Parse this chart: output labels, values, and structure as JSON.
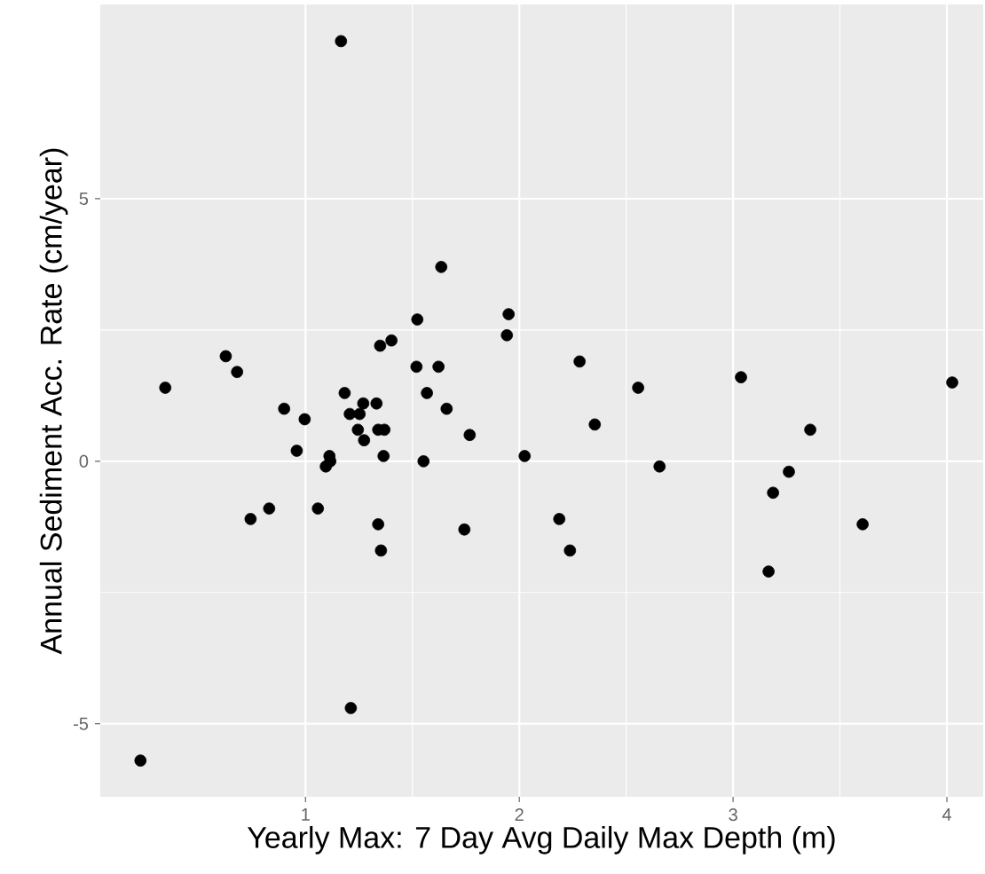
{
  "chart_data": {
    "type": "scatter",
    "xlabel": "Yearly Max: 7 Day Avg Daily Max Depth (m)",
    "ylabel": "Annual Sediment Acc. Rate (cm/year)",
    "x": [
      1.166,
      1.635,
      1.523,
      1.95,
      1.942,
      1.402,
      1.349,
      0.627,
      0.68,
      0.344,
      1.519,
      1.622,
      2.282,
      2.556,
      3.037,
      4.025,
      1.183,
      1.568,
      0.9,
      0.996,
      1.207,
      1.27,
      1.332,
      1.253,
      1.66,
      1.245,
      1.34,
      1.369,
      1.274,
      1.768,
      2.353,
      3.361,
      0.959,
      1.112,
      1.116,
      1.095,
      1.365,
      1.552,
      2.025,
      2.656,
      3.261,
      0.743,
      0.83,
      1.058,
      1.34,
      1.353,
      1.743,
      2.187,
      2.237,
      3.187,
      3.166,
      3.606,
      1.212,
      0.228
    ],
    "values": [
      8.0,
      3.7,
      2.7,
      2.8,
      2.4,
      2.3,
      2.2,
      2.0,
      1.7,
      1.4,
      1.8,
      1.8,
      1.9,
      1.4,
      1.6,
      1.5,
      1.3,
      1.3,
      1.0,
      0.8,
      0.9,
      1.1,
      1.1,
      0.9,
      1.0,
      0.6,
      0.6,
      0.6,
      0.4,
      0.5,
      0.7,
      0.6,
      0.2,
      0.1,
      0.0,
      -0.1,
      0.1,
      0.0,
      0.1,
      -0.1,
      -0.2,
      -1.1,
      -0.9,
      -0.9,
      -1.2,
      -1.7,
      -1.3,
      -1.1,
      -1.7,
      -0.6,
      -2.1,
      -1.2,
      -4.7,
      -5.7
    ],
    "color": "#000000",
    "xlim": [
      0.04,
      4.17
    ],
    "ylim": [
      -6.39,
      8.7
    ],
    "xticks": [
      1,
      2,
      3,
      4
    ],
    "yticks": [
      -5,
      0,
      5
    ],
    "grid": true
  }
}
